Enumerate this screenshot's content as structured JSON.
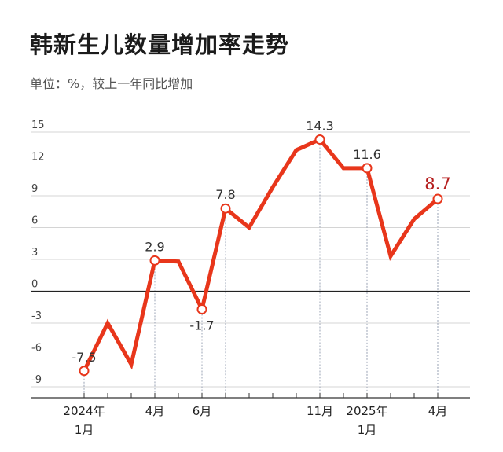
{
  "title": "韩新生儿数量增加率走势",
  "subtitle": "单位：%，较上一年同比增加",
  "chart_data": {
    "type": "line",
    "title": "韩新生儿数量增加率走势",
    "subtitle": "单位：%，较上一年同比增加",
    "xlabel": "",
    "ylabel": "",
    "x": [
      "2024-01",
      "2024-02",
      "2024-03",
      "2024-04",
      "2024-05",
      "2024-06",
      "2024-07",
      "2024-08",
      "2024-09",
      "2024-10",
      "2024-11",
      "2024-12",
      "2025-01",
      "2025-02",
      "2025-03",
      "2025-04"
    ],
    "yticks": [
      15,
      12,
      9,
      6,
      3,
      0,
      -3,
      -6,
      -9
    ],
    "ylim": [
      -9,
      15
    ],
    "grid": true,
    "series": [
      {
        "values": [
          -7.5,
          -3.0,
          -6.9,
          2.9,
          2.8,
          -1.7,
          7.8,
          6.0,
          9.8,
          13.3,
          14.3,
          11.6,
          11.6,
          3.3,
          6.8,
          8.7
        ],
        "color": "#e8361b"
      }
    ],
    "x_tick_labels": [
      {
        "index": 0,
        "line1": "2024年",
        "line2": "1月"
      },
      {
        "index": 3,
        "line1": "4月",
        "line2": ""
      },
      {
        "index": 5,
        "line1": "6月",
        "line2": ""
      },
      {
        "index": 10,
        "line1": "11月",
        "line2": ""
      },
      {
        "index": 12,
        "line1": "2025年",
        "line2": "1月"
      },
      {
        "index": 15,
        "line1": "4月",
        "line2": ""
      }
    ],
    "data_labels": [
      {
        "index": 0,
        "text": "-7.5",
        "position": "above"
      },
      {
        "index": 3,
        "text": "2.9",
        "position": "above"
      },
      {
        "index": 5,
        "text": "-1.7",
        "position": "below"
      },
      {
        "index": 6,
        "text": "7.8",
        "position": "above"
      },
      {
        "index": 10,
        "text": "14.3",
        "position": "above"
      },
      {
        "index": 12,
        "text": "11.6",
        "position": "above"
      },
      {
        "index": 15,
        "text": "8.7",
        "position": "above",
        "highlight": true,
        "color": "#b51e1e"
      }
    ],
    "marker_color": "#ffffff",
    "zero_line_color": "#222222"
  }
}
